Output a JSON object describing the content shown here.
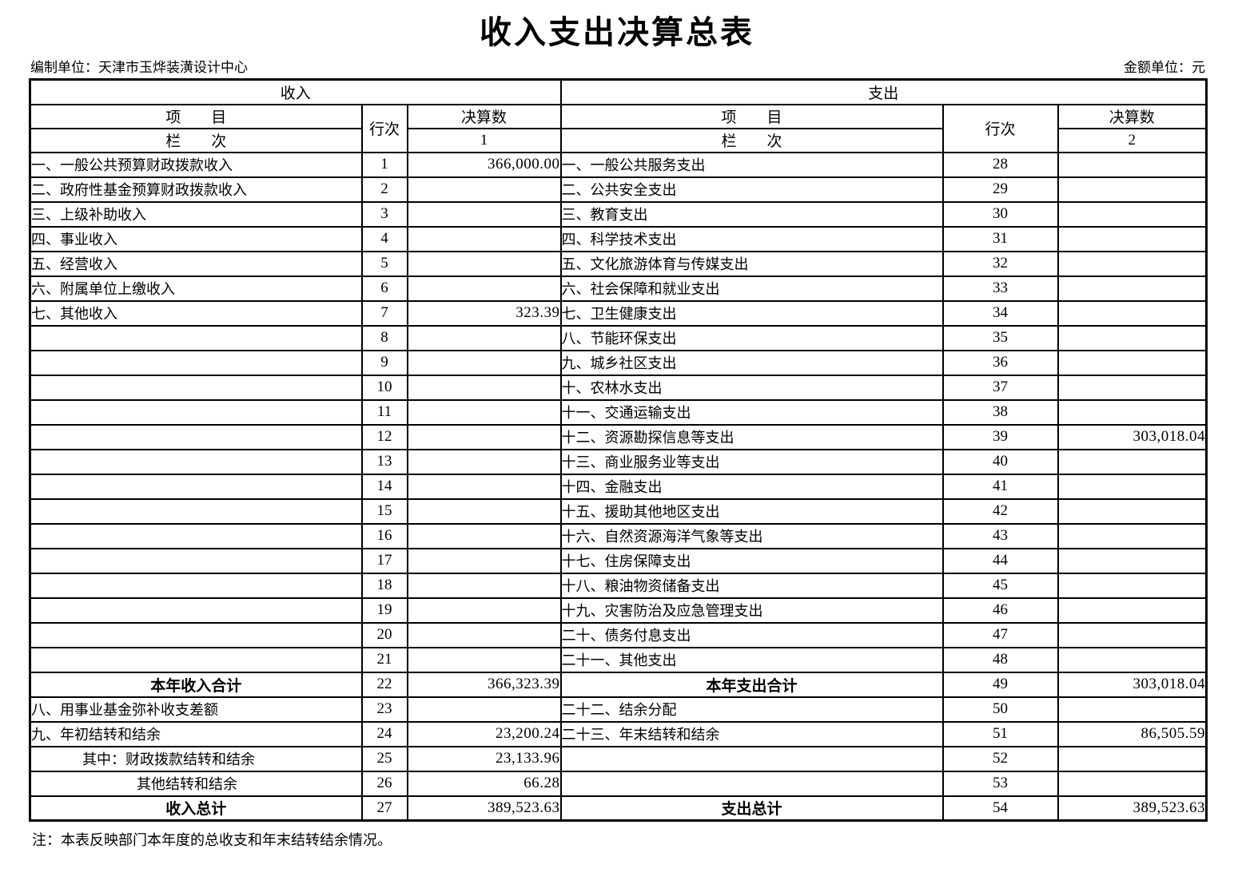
{
  "title": "收入支出决算总表",
  "meta": {
    "unit_label": "编制单位：天津市玉烨装潢设计中心",
    "currency_label": "金额单位：元"
  },
  "table": {
    "income_section": "收入",
    "expense_section": "支出",
    "col_item": "项　　目",
    "col_line": "行次",
    "col_amount": "决算数",
    "col_index_label": "栏　　次",
    "income_col_index": "1",
    "expense_col_index": "2",
    "rows": [
      {
        "income": {
          "item": "一、一般公共预算财政拨款收入",
          "line": "1",
          "amount": "366,000.00",
          "style": "normal"
        },
        "expense": {
          "item": "一、一般公共服务支出",
          "line": "28",
          "amount": "",
          "style": "normal"
        }
      },
      {
        "income": {
          "item": "二、政府性基金预算财政拨款收入",
          "line": "2",
          "amount": "",
          "style": "normal"
        },
        "expense": {
          "item": "二、公共安全支出",
          "line": "29",
          "amount": "",
          "style": "normal"
        }
      },
      {
        "income": {
          "item": "三、上级补助收入",
          "line": "3",
          "amount": "",
          "style": "normal"
        },
        "expense": {
          "item": "三、教育支出",
          "line": "30",
          "amount": "",
          "style": "normal"
        }
      },
      {
        "income": {
          "item": "四、事业收入",
          "line": "4",
          "amount": "",
          "style": "normal"
        },
        "expense": {
          "item": "四、科学技术支出",
          "line": "31",
          "amount": "",
          "style": "normal"
        }
      },
      {
        "income": {
          "item": "五、经营收入",
          "line": "5",
          "amount": "",
          "style": "normal"
        },
        "expense": {
          "item": "五、文化旅游体育与传媒支出",
          "line": "32",
          "amount": "",
          "style": "normal"
        }
      },
      {
        "income": {
          "item": "六、附属单位上缴收入",
          "line": "6",
          "amount": "",
          "style": "normal"
        },
        "expense": {
          "item": "六、社会保障和就业支出",
          "line": "33",
          "amount": "",
          "style": "normal"
        }
      },
      {
        "income": {
          "item": "七、其他收入",
          "line": "7",
          "amount": "323.39",
          "style": "normal"
        },
        "expense": {
          "item": "七、卫生健康支出",
          "line": "34",
          "amount": "",
          "style": "normal"
        }
      },
      {
        "income": {
          "item": "",
          "line": "8",
          "amount": "",
          "style": "normal"
        },
        "expense": {
          "item": "八、节能环保支出",
          "line": "35",
          "amount": "",
          "style": "normal"
        }
      },
      {
        "income": {
          "item": "",
          "line": "9",
          "amount": "",
          "style": "normal"
        },
        "expense": {
          "item": "九、城乡社区支出",
          "line": "36",
          "amount": "",
          "style": "normal"
        }
      },
      {
        "income": {
          "item": "",
          "line": "10",
          "amount": "",
          "style": "normal"
        },
        "expense": {
          "item": "十、农林水支出",
          "line": "37",
          "amount": "",
          "style": "normal"
        }
      },
      {
        "income": {
          "item": "",
          "line": "11",
          "amount": "",
          "style": "normal"
        },
        "expense": {
          "item": "十一、交通运输支出",
          "line": "38",
          "amount": "",
          "style": "normal"
        }
      },
      {
        "income": {
          "item": "",
          "line": "12",
          "amount": "",
          "style": "normal"
        },
        "expense": {
          "item": "十二、资源勘探信息等支出",
          "line": "39",
          "amount": "303,018.04",
          "style": "normal"
        }
      },
      {
        "income": {
          "item": "",
          "line": "13",
          "amount": "",
          "style": "normal"
        },
        "expense": {
          "item": "十三、商业服务业等支出",
          "line": "40",
          "amount": "",
          "style": "normal"
        }
      },
      {
        "income": {
          "item": "",
          "line": "14",
          "amount": "",
          "style": "normal"
        },
        "expense": {
          "item": "十四、金融支出",
          "line": "41",
          "amount": "",
          "style": "normal"
        }
      },
      {
        "income": {
          "item": "",
          "line": "15",
          "amount": "",
          "style": "normal"
        },
        "expense": {
          "item": "十五、援助其他地区支出",
          "line": "42",
          "amount": "",
          "style": "normal"
        }
      },
      {
        "income": {
          "item": "",
          "line": "16",
          "amount": "",
          "style": "normal"
        },
        "expense": {
          "item": "十六、自然资源海洋气象等支出",
          "line": "43",
          "amount": "",
          "style": "normal"
        }
      },
      {
        "income": {
          "item": "",
          "line": "17",
          "amount": "",
          "style": "normal"
        },
        "expense": {
          "item": "十七、住房保障支出",
          "line": "44",
          "amount": "",
          "style": "normal"
        }
      },
      {
        "income": {
          "item": "",
          "line": "18",
          "amount": "",
          "style": "normal"
        },
        "expense": {
          "item": "十八、粮油物资储备支出",
          "line": "45",
          "amount": "",
          "style": "normal"
        }
      },
      {
        "income": {
          "item": "",
          "line": "19",
          "amount": "",
          "style": "normal"
        },
        "expense": {
          "item": "十九、灾害防治及应急管理支出",
          "line": "46",
          "amount": "",
          "style": "normal"
        }
      },
      {
        "income": {
          "item": "",
          "line": "20",
          "amount": "",
          "style": "normal"
        },
        "expense": {
          "item": "二十、债务付息支出",
          "line": "47",
          "amount": "",
          "style": "normal"
        }
      },
      {
        "income": {
          "item": "",
          "line": "21",
          "amount": "",
          "style": "normal"
        },
        "expense": {
          "item": "二十一、其他支出",
          "line": "48",
          "amount": "",
          "style": "normal"
        }
      },
      {
        "income": {
          "item": "本年收入合计",
          "line": "22",
          "amount": "366,323.39",
          "style": "total"
        },
        "expense": {
          "item": "本年支出合计",
          "line": "49",
          "amount": "303,018.04",
          "style": "total"
        }
      },
      {
        "income": {
          "item": "八、用事业基金弥补收支差额",
          "line": "23",
          "amount": "",
          "style": "normal"
        },
        "expense": {
          "item": "二十二、结余分配",
          "line": "50",
          "amount": "",
          "style": "normal"
        }
      },
      {
        "income": {
          "item": "九、年初结转和结余",
          "line": "24",
          "amount": "23,200.24",
          "style": "normal"
        },
        "expense": {
          "item": "二十三、年末结转和结余",
          "line": "51",
          "amount": "86,505.59",
          "style": "normal"
        }
      },
      {
        "income": {
          "item": "其中：财政拨款结转和结余",
          "line": "25",
          "amount": "23,133.96",
          "style": "indent1"
        },
        "expense": {
          "item": "",
          "line": "52",
          "amount": "",
          "style": "normal"
        }
      },
      {
        "income": {
          "item": "其他结转和结余",
          "line": "26",
          "amount": "66.28",
          "style": "indent2"
        },
        "expense": {
          "item": "",
          "line": "53",
          "amount": "",
          "style": "normal"
        }
      },
      {
        "income": {
          "item": "收入总计",
          "line": "27",
          "amount": "389,523.63",
          "style": "total"
        },
        "expense": {
          "item": "支出总计",
          "line": "54",
          "amount": "389,523.63",
          "style": "total"
        }
      }
    ]
  },
  "note": "注：本表反映部门本年度的总收支和年末结转结余情况。"
}
